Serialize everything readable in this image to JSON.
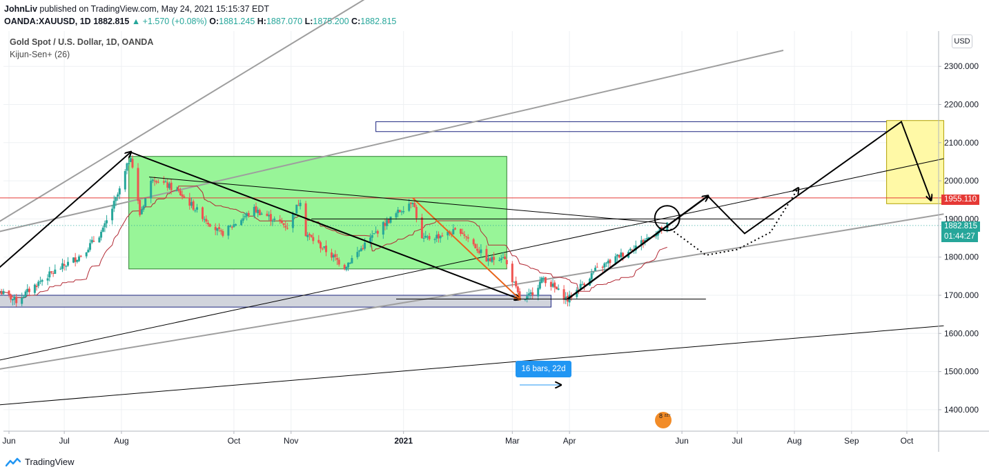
{
  "header": {
    "author": "JohnLiv",
    "published_text": " published on TradingView.com, May 24, 2021 15:15:37 EDT",
    "symbol": "OANDA:XAUUSD, 1D",
    "last": "1882.815",
    "change": "▲ +1.570 (+0.08%)",
    "o_label": "O:",
    "o_value": "1881.245",
    "h_label": "H:",
    "h_value": "1887.070",
    "l_label": "L:",
    "l_value": "1875.200",
    "c_label": "C:",
    "c_value": "1882.815"
  },
  "legend": {
    "title": "Gold Spot / U.S. Dollar, 1D, OANDA",
    "indicator": "Kijun-Sen+ (26)"
  },
  "axis": {
    "currency_button": "USD",
    "current_price_tag": "1882.815",
    "countdown_tag": "01:44:27",
    "level_tag": "1955.110"
  },
  "measure": {
    "label": "16 bars, 22d"
  },
  "footer": {
    "brand": "TradingView"
  },
  "badge": {
    "text": "8 ²²⁷"
  },
  "colors": {
    "up": "#26a69a",
    "down": "#ef5350",
    "kijun": "#b22833",
    "green_box": "#98f598",
    "yellow_box": "#fff9a6",
    "red_line": "#e53935",
    "current_price": "#26a69a",
    "measure": "#2196f3"
  },
  "chart_data": {
    "type": "candlestick",
    "title": "Gold Spot / U.S. Dollar, 1D, OANDA",
    "y_axis": {
      "ticks": [
        2300,
        2200,
        2100,
        2000,
        1900,
        1800,
        1700,
        1600,
        1500,
        1400
      ],
      "tick_labels": [
        "2300.000",
        "2200.000",
        "2100.000",
        "2000.000",
        "1900.000",
        "1800.000",
        "1700.000",
        "1600.000",
        "1500.000",
        "1400.000"
      ],
      "range": [
        1340,
        2410
      ]
    },
    "x_axis": {
      "tick_labels": [
        "Jun",
        "Jul",
        "Aug",
        "Oct",
        "Nov",
        "2021",
        "Mar",
        "Apr",
        "Jun",
        "Jul",
        "Aug",
        "Sep",
        "Oct"
      ],
      "tick_dates": [
        "2020-06-01",
        "2020-07-01",
        "2020-08-01",
        "2020-10-01",
        "2020-11-01",
        "2021-01-01",
        "2021-03-01",
        "2021-04-01",
        "2021-06-01",
        "2021-07-01",
        "2021-08-01",
        "2021-09-01",
        "2021-10-01"
      ]
    },
    "price_path": [
      [
        "2020-05-27",
        1710
      ],
      [
        "2020-06-05",
        1685
      ],
      [
        "2020-06-20",
        1745
      ],
      [
        "2020-07-10",
        1805
      ],
      [
        "2020-07-22",
        1870
      ],
      [
        "2020-07-31",
        1975
      ],
      [
        "2020-08-06",
        2068
      ],
      [
        "2020-08-11",
        1912
      ],
      [
        "2020-08-18",
        2010
      ],
      [
        "2020-09-01",
        1970
      ],
      [
        "2020-09-24",
        1860
      ],
      [
        "2020-10-12",
        1925
      ],
      [
        "2020-10-30",
        1880
      ],
      [
        "2020-11-06",
        1951
      ],
      [
        "2020-11-09",
        1862
      ],
      [
        "2020-11-30",
        1775
      ],
      [
        "2020-12-20",
        1880
      ],
      [
        "2021-01-06",
        1950
      ],
      [
        "2021-01-11",
        1845
      ],
      [
        "2021-02-01",
        1870
      ],
      [
        "2021-02-16",
        1790
      ],
      [
        "2021-02-24",
        1805
      ],
      [
        "2021-03-05",
        1690
      ],
      [
        "2021-03-08",
        1685
      ],
      [
        "2021-03-18",
        1745
      ],
      [
        "2021-03-31",
        1688
      ],
      [
        "2021-04-15",
        1765
      ],
      [
        "2021-05-07",
        1830
      ],
      [
        "2021-05-24",
        1882.815
      ]
    ],
    "levels": [
      {
        "label": "1955.110",
        "value": 1955.11
      }
    ],
    "current_price": 1882.815,
    "legend": [
      "Kijun-Sen+ (26)"
    ]
  }
}
